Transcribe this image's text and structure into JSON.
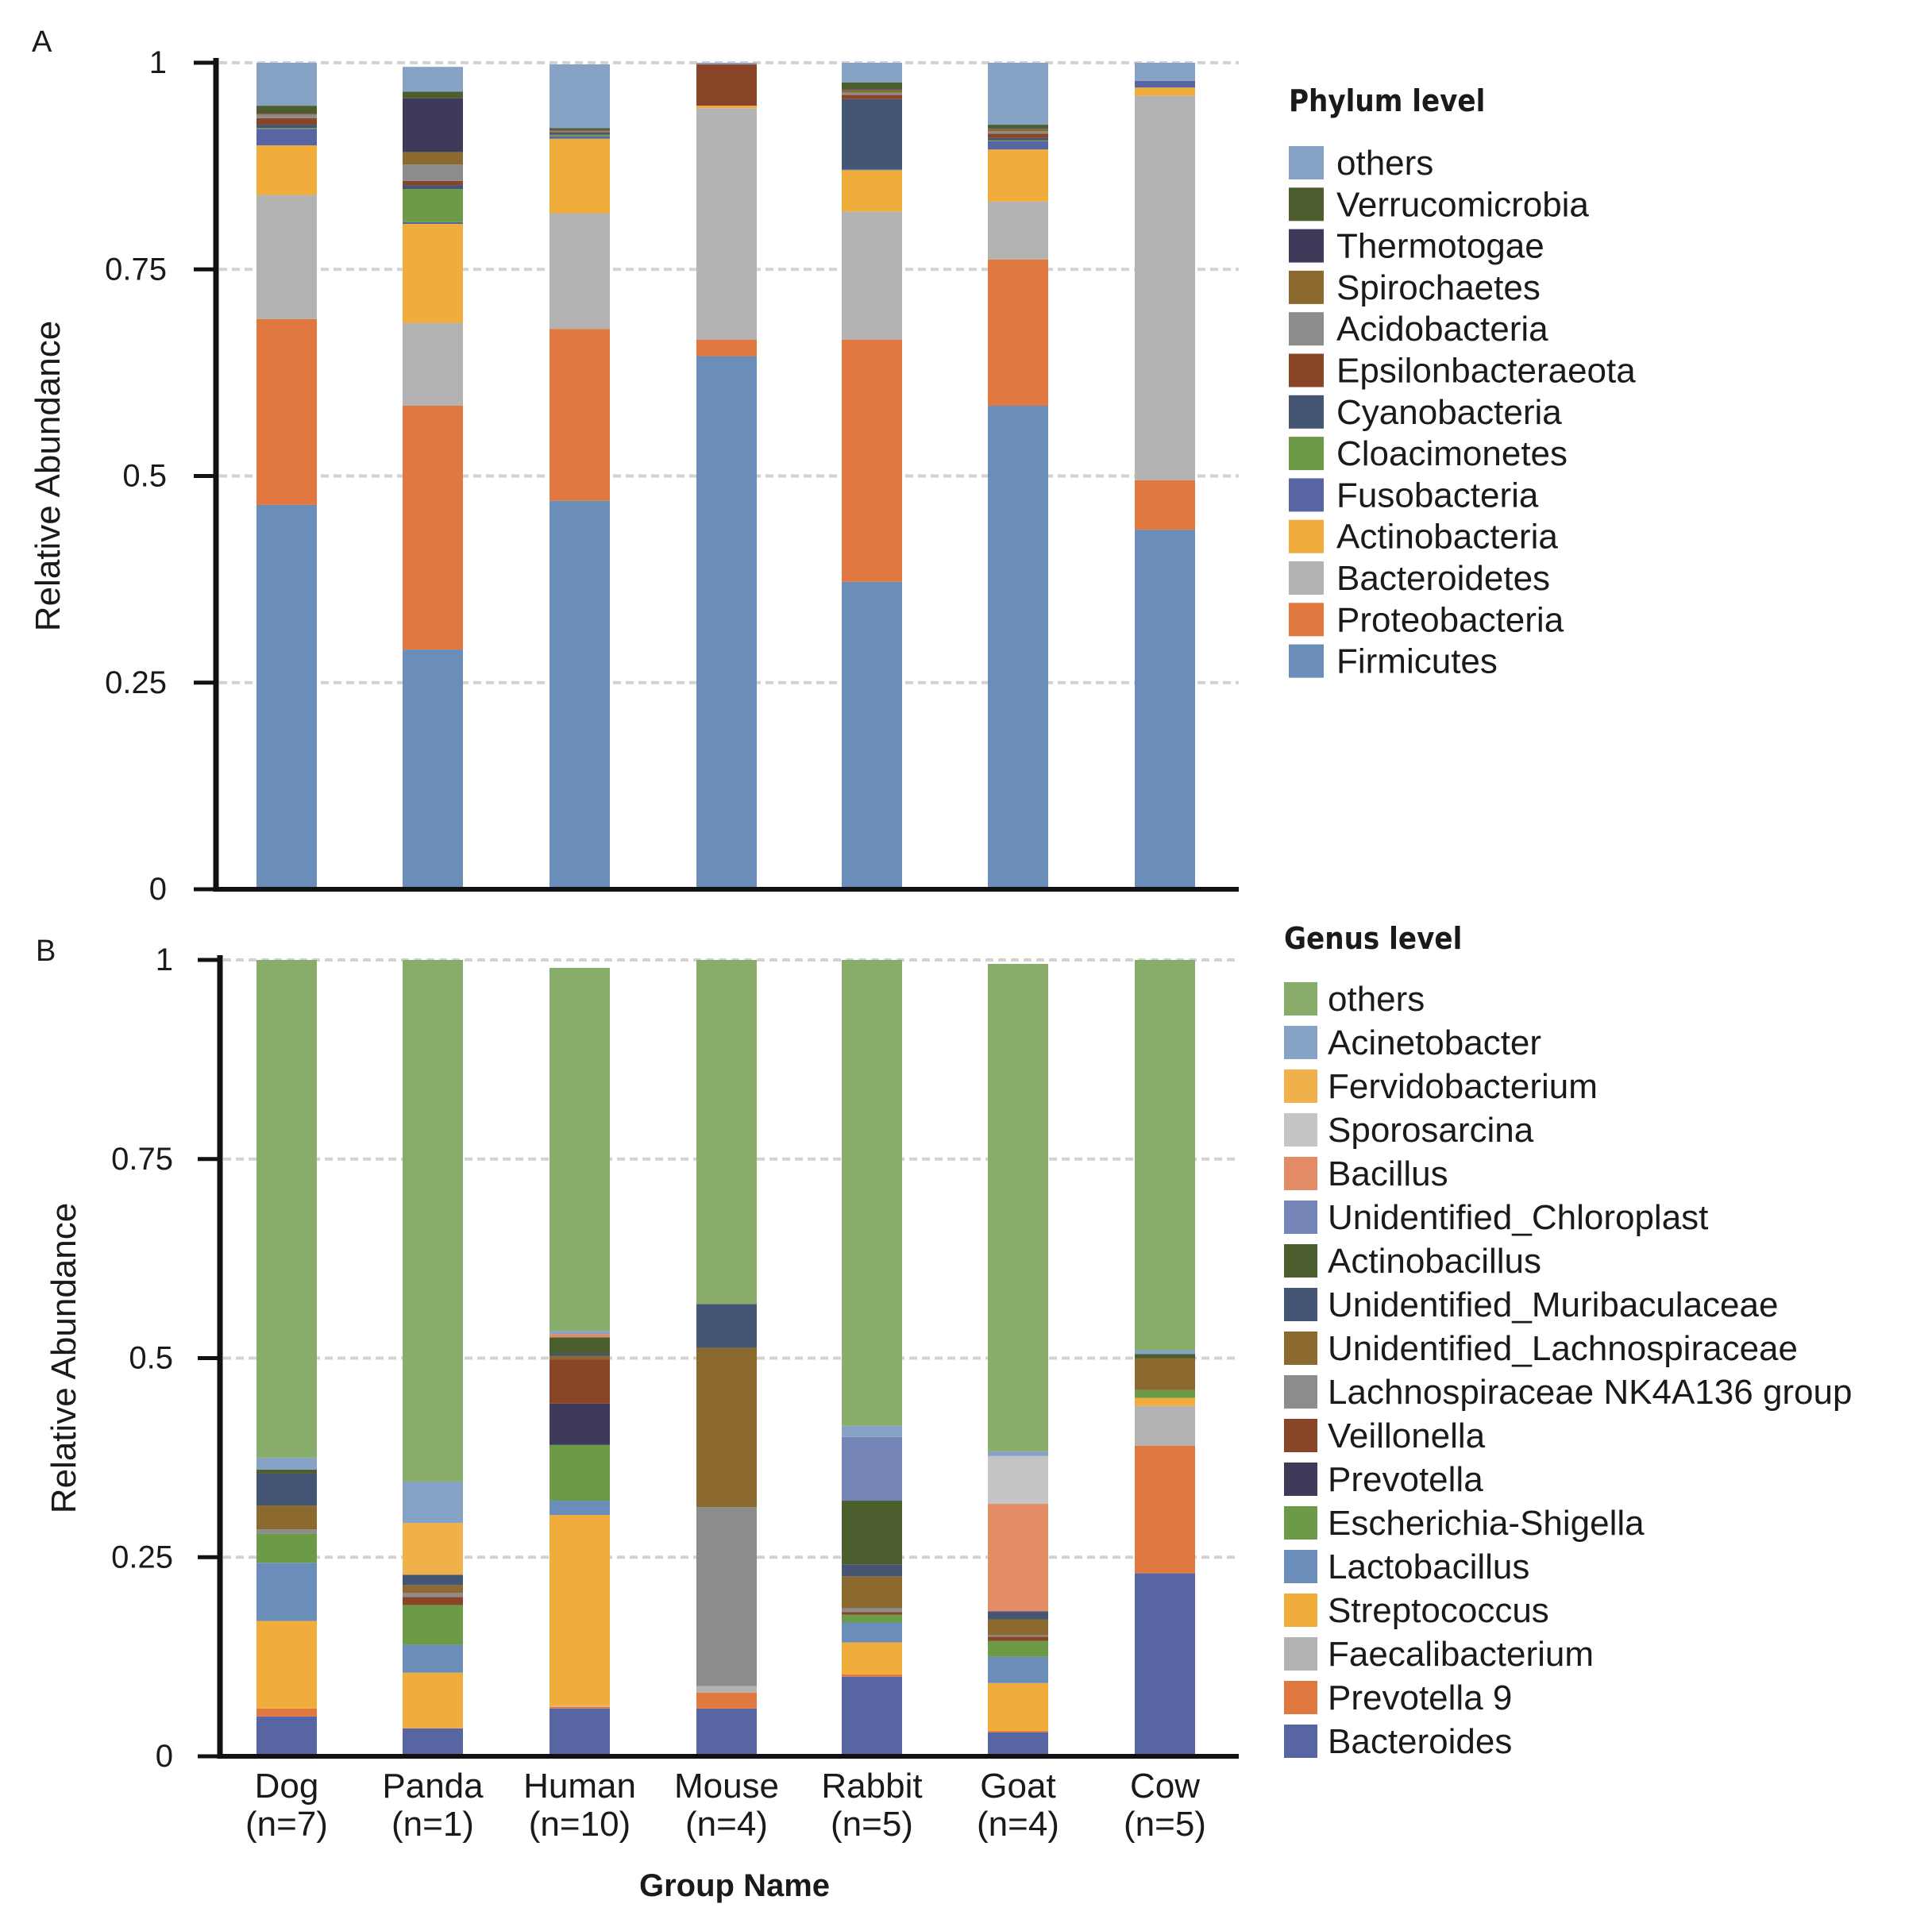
{
  "x_label": "Group Name",
  "categories": [
    {
      "name": "Dog",
      "n": "(n=7)"
    },
    {
      "name": "Panda",
      "n": "(n=1)"
    },
    {
      "name": "Human",
      "n": "(n=10)"
    },
    {
      "name": "Mouse",
      "n": "(n=4)"
    },
    {
      "name": "Rabbit",
      "n": "(n=5)"
    },
    {
      "name": "Goat",
      "n": "(n=4)"
    },
    {
      "name": "Cow",
      "n": "(n=5)"
    }
  ],
  "chart_data": [
    {
      "panel": "A",
      "type": "bar",
      "stacked": true,
      "ylabel": "Relative Abundance",
      "ylim": [
        0,
        1
      ],
      "yticks": [
        "0",
        "0.25",
        "0.5",
        "0.75",
        "1"
      ],
      "grid": true,
      "legend_title": "Phylum level",
      "legend_position": "right",
      "categories": [
        "Dog",
        "Panda",
        "Human",
        "Mouse",
        "Rabbit",
        "Goat",
        "Cow"
      ],
      "series": [
        {
          "name": "Firmicutes",
          "color": "#6a8db9",
          "values": [
            0.465,
            0.29,
            0.47,
            0.645,
            0.372,
            0.585,
            0.435
          ]
        },
        {
          "name": "Proteobacteria",
          "color": "#e07840",
          "values": [
            0.225,
            0.295,
            0.208,
            0.02,
            0.293,
            0.177,
            0.06
          ]
        },
        {
          "name": "Bacteroidetes",
          "color": "#b3b3b3",
          "values": [
            0.15,
            0.1,
            0.14,
            0.28,
            0.155,
            0.07,
            0.465
          ]
        },
        {
          "name": "Actinobacteria",
          "color": "#f0ad3c",
          "values": [
            0.06,
            0.12,
            0.09,
            0.003,
            0.05,
            0.063,
            0.01
          ]
        },
        {
          "name": "Fusobacteria",
          "color": "#5766a3",
          "values": [
            0.02,
            0.002,
            0.003,
            0.0,
            0.001,
            0.01,
            0.008
          ]
        },
        {
          "name": "Cloacimonetes",
          "color": "#6d9a47",
          "values": [
            0.001,
            0.04,
            0.002,
            0.0,
            0.0,
            0.001,
            0.0
          ]
        },
        {
          "name": "Cyanobacteria",
          "color": "#445674",
          "values": [
            0.004,
            0.005,
            0.002,
            0.0,
            0.085,
            0.003,
            0.0
          ]
        },
        {
          "name": "Epsilonbacteraeota",
          "color": "#8a4427",
          "values": [
            0.008,
            0.005,
            0.001,
            0.05,
            0.005,
            0.005,
            0.0
          ]
        },
        {
          "name": "Acidobacteria",
          "color": "#8c8c8c",
          "values": [
            0.004,
            0.02,
            0.001,
            0.0,
            0.003,
            0.003,
            0.0
          ]
        },
        {
          "name": "Spirochaetes",
          "color": "#8c6a2f",
          "values": [
            0.002,
            0.015,
            0.001,
            0.0,
            0.003,
            0.003,
            0.0
          ]
        },
        {
          "name": "Thermotogae",
          "color": "#3e3a5a",
          "values": [
            0.001,
            0.065,
            0.001,
            0.0,
            0.001,
            0.001,
            0.0
          ]
        },
        {
          "name": "Verrucomicrobia",
          "color": "#4c5e2e",
          "values": [
            0.008,
            0.008,
            0.002,
            0.0,
            0.008,
            0.004,
            0.0
          ]
        },
        {
          "name": "others",
          "color": "#86a3c6",
          "values": [
            0.052,
            0.03,
            0.077,
            0.002,
            0.024,
            0.075,
            0.022
          ]
        }
      ],
      "legend_order": [
        "others",
        "Verrucomicrobia",
        "Thermotogae",
        "Spirochaetes",
        "Acidobacteria",
        "Epsilonbacteraeota",
        "Cyanobacteria",
        "Cloacimonetes",
        "Fusobacteria",
        "Actinobacteria",
        "Bacteroidetes",
        "Proteobacteria",
        "Firmicutes"
      ]
    },
    {
      "panel": "B",
      "type": "bar",
      "stacked": true,
      "ylabel": "Relative Abundance",
      "ylim": [
        0,
        1
      ],
      "yticks": [
        "0",
        "0.25",
        "0.5",
        "0.75",
        "1"
      ],
      "grid": true,
      "legend_title": "Genus level",
      "legend_position": "right",
      "categories": [
        "Dog",
        "Panda",
        "Human",
        "Mouse",
        "Rabbit",
        "Goat",
        "Cow"
      ],
      "series": [
        {
          "name": "Bacteroides",
          "color": "#5766a3",
          "values": [
            0.05,
            0.035,
            0.06,
            0.06,
            0.1,
            0.03,
            0.23
          ]
        },
        {
          "name": "Prevotella 9",
          "color": "#e07840",
          "values": [
            0.01,
            0.0,
            0.002,
            0.02,
            0.003,
            0.002,
            0.16
          ]
        },
        {
          "name": "Faecalibacterium",
          "color": "#b3b3b3",
          "values": [
            0.0,
            0.0,
            0.001,
            0.008,
            0.0,
            0.0,
            0.05
          ]
        },
        {
          "name": "Streptococcus",
          "color": "#f0ad3c",
          "values": [
            0.11,
            0.07,
            0.24,
            0.0,
            0.04,
            0.06,
            0.01
          ]
        },
        {
          "name": "Lactobacillus",
          "color": "#6a8db9",
          "values": [
            0.073,
            0.035,
            0.018,
            0.0,
            0.025,
            0.033,
            0.0
          ]
        },
        {
          "name": "Escherichia-Shigella",
          "color": "#6d9a47",
          "values": [
            0.037,
            0.05,
            0.07,
            0.0,
            0.01,
            0.02,
            0.01
          ]
        },
        {
          "name": "Prevotella",
          "color": "#3e3a5a",
          "values": [
            0.0,
            0.0,
            0.052,
            0.0,
            0.0,
            0.0,
            0.0
          ]
        },
        {
          "name": "Veillonella",
          "color": "#8a4427",
          "values": [
            0.0,
            0.01,
            0.055,
            0.0,
            0.003,
            0.005,
            0.0
          ]
        },
        {
          "name": "Lachnospiraceae NK4A136 group",
          "color": "#8c8c8c",
          "values": [
            0.005,
            0.005,
            0.0,
            0.225,
            0.005,
            0.002,
            0.0
          ]
        },
        {
          "name": "Unidentified_Lachnospiraceae",
          "color": "#8c6a2f",
          "values": [
            0.03,
            0.01,
            0.005,
            0.2,
            0.04,
            0.02,
            0.04
          ]
        },
        {
          "name": "Unidentified_Muribaculaceae",
          "color": "#445674",
          "values": [
            0.04,
            0.013,
            0.003,
            0.055,
            0.015,
            0.01,
            0.0
          ]
        },
        {
          "name": "Actinobacillus",
          "color": "#4c5e2e",
          "values": [
            0.005,
            0.0,
            0.02,
            0.0,
            0.08,
            0.0,
            0.005
          ]
        },
        {
          "name": "Unidentified_Chloroplast",
          "color": "#7685b8",
          "values": [
            0.0,
            0.0,
            0.0,
            0.0,
            0.08,
            0.0,
            0.0
          ]
        },
        {
          "name": "Bacillus",
          "color": "#e38c66",
          "values": [
            0.0,
            0.0,
            0.004,
            0.0,
            0.0,
            0.135,
            0.0
          ]
        },
        {
          "name": "Sporosarcina",
          "color": "#c5c5c5",
          "values": [
            0.0,
            0.0,
            0.0,
            0.0,
            0.0,
            0.06,
            0.0
          ]
        },
        {
          "name": "Fervidobacterium",
          "color": "#f0b04a",
          "values": [
            0.0,
            0.065,
            0.0,
            0.0,
            0.0,
            0.0,
            0.0
          ]
        },
        {
          "name": "Acinetobacter",
          "color": "#86a3c6",
          "values": [
            0.015,
            0.052,
            0.004,
            0.0,
            0.014,
            0.006,
            0.005
          ]
        },
        {
          "name": "others",
          "color": "#88ad6a",
          "values": [
            0.625,
            0.655,
            0.456,
            0.432,
            0.585,
            0.612,
            0.49
          ]
        }
      ],
      "legend_order": [
        "others",
        "Acinetobacter",
        "Fervidobacterium",
        "Sporosarcina",
        "Bacillus",
        "Unidentified_Chloroplast",
        "Actinobacillus",
        "Unidentified_Muribaculaceae",
        "Unidentified_Lachnospiraceae",
        "Lachnospiraceae NK4A136 group",
        "Veillonella",
        "Prevotella",
        "Escherichia-Shigella",
        "Lactobacillus",
        "Streptococcus",
        "Faecalibacterium",
        "Prevotella 9",
        "Bacteroides"
      ]
    }
  ]
}
